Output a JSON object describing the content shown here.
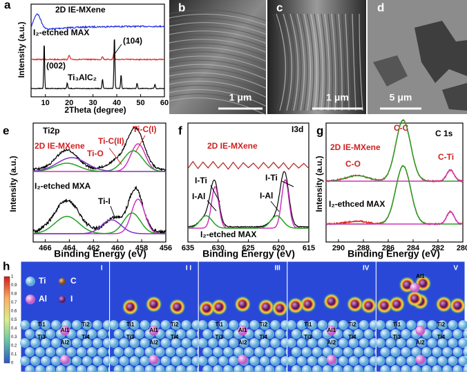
{
  "a": {
    "letter": "a",
    "ylabel": "Intensity (a.u.)",
    "xlabel": "2Theta (degree)",
    "xticks": [
      10,
      20,
      30,
      40,
      50,
      60
    ],
    "labels": [
      "2D IE-MXene",
      "I₂-etched MAX",
      "(104)",
      "(002)",
      "Ti₃AlC₂"
    ]
  },
  "b": {
    "letter": "b",
    "scale": "1 μm"
  },
  "c": {
    "letter": "c",
    "scale": "1 μm"
  },
  "d": {
    "letter": "d",
    "scale": "5 μm"
  },
  "e": {
    "letter": "e",
    "ylabel": "Intensity (a.u.)",
    "xlabel": "Binding Energy (eV)",
    "xticks": [
      466,
      464,
      462,
      460,
      458,
      456
    ],
    "labels": [
      "Ti2p",
      "2D IE-MXene",
      "Ti-O",
      "Ti-C(II)",
      "Ti-C(I)",
      "I₂-etched MXA",
      "Ti-I"
    ]
  },
  "f": {
    "letter": "f",
    "xlabel": "Binding Energy (eV)",
    "xticks": [
      635,
      630,
      625,
      620,
      615
    ],
    "labels": [
      "I3d",
      "2D IE-MXene",
      "I-Ti",
      "I-Al",
      "I-Ti",
      "I-Al",
      "I₂-etched MAX"
    ]
  },
  "g": {
    "letter": "g",
    "ylabel": "Intensity (a.u.)",
    "xlabel": "Binding Energy (eV)",
    "xticks": [
      290,
      288,
      286,
      284,
      282,
      280
    ],
    "labels": [
      "C-C",
      "C 1s",
      "2D IE-MXene",
      "C-O",
      "C-Ti",
      "I₂-ethced MAX"
    ]
  },
  "h": {
    "letter": "h",
    "colorbar_ticks": [
      1,
      0.9,
      0.8,
      0.7,
      0.6,
      0.5,
      0.4,
      0.3,
      0.2,
      0.1,
      0
    ],
    "legend": [
      "Ti",
      "C",
      "Al",
      "I"
    ],
    "frames": [
      {
        "label": "I",
        "atoms": [
          "Ti1",
          "Ti2",
          "Al1",
          "Ti3",
          "Ti4",
          "Al2"
        ]
      },
      {
        "label": "I I",
        "atoms": [
          "Ti1",
          "Ti2",
          "Al1",
          "Ti3",
          "Ti4",
          "Al2"
        ]
      },
      {
        "label": "III",
        "atoms": [
          "Ti1",
          "Ti2",
          "Al1",
          "Ti3",
          "Ti4",
          "Al2"
        ]
      },
      {
        "label": "IV",
        "atoms": [
          "Ti1",
          "Ti2",
          "Al1",
          "Ti3",
          "Ti4",
          "Al2"
        ]
      },
      {
        "label": "V",
        "atoms": [
          "Ti1",
          "Ti2",
          "Al1",
          "Ti3",
          "Ti4",
          "Al2"
        ]
      }
    ]
  }
}
